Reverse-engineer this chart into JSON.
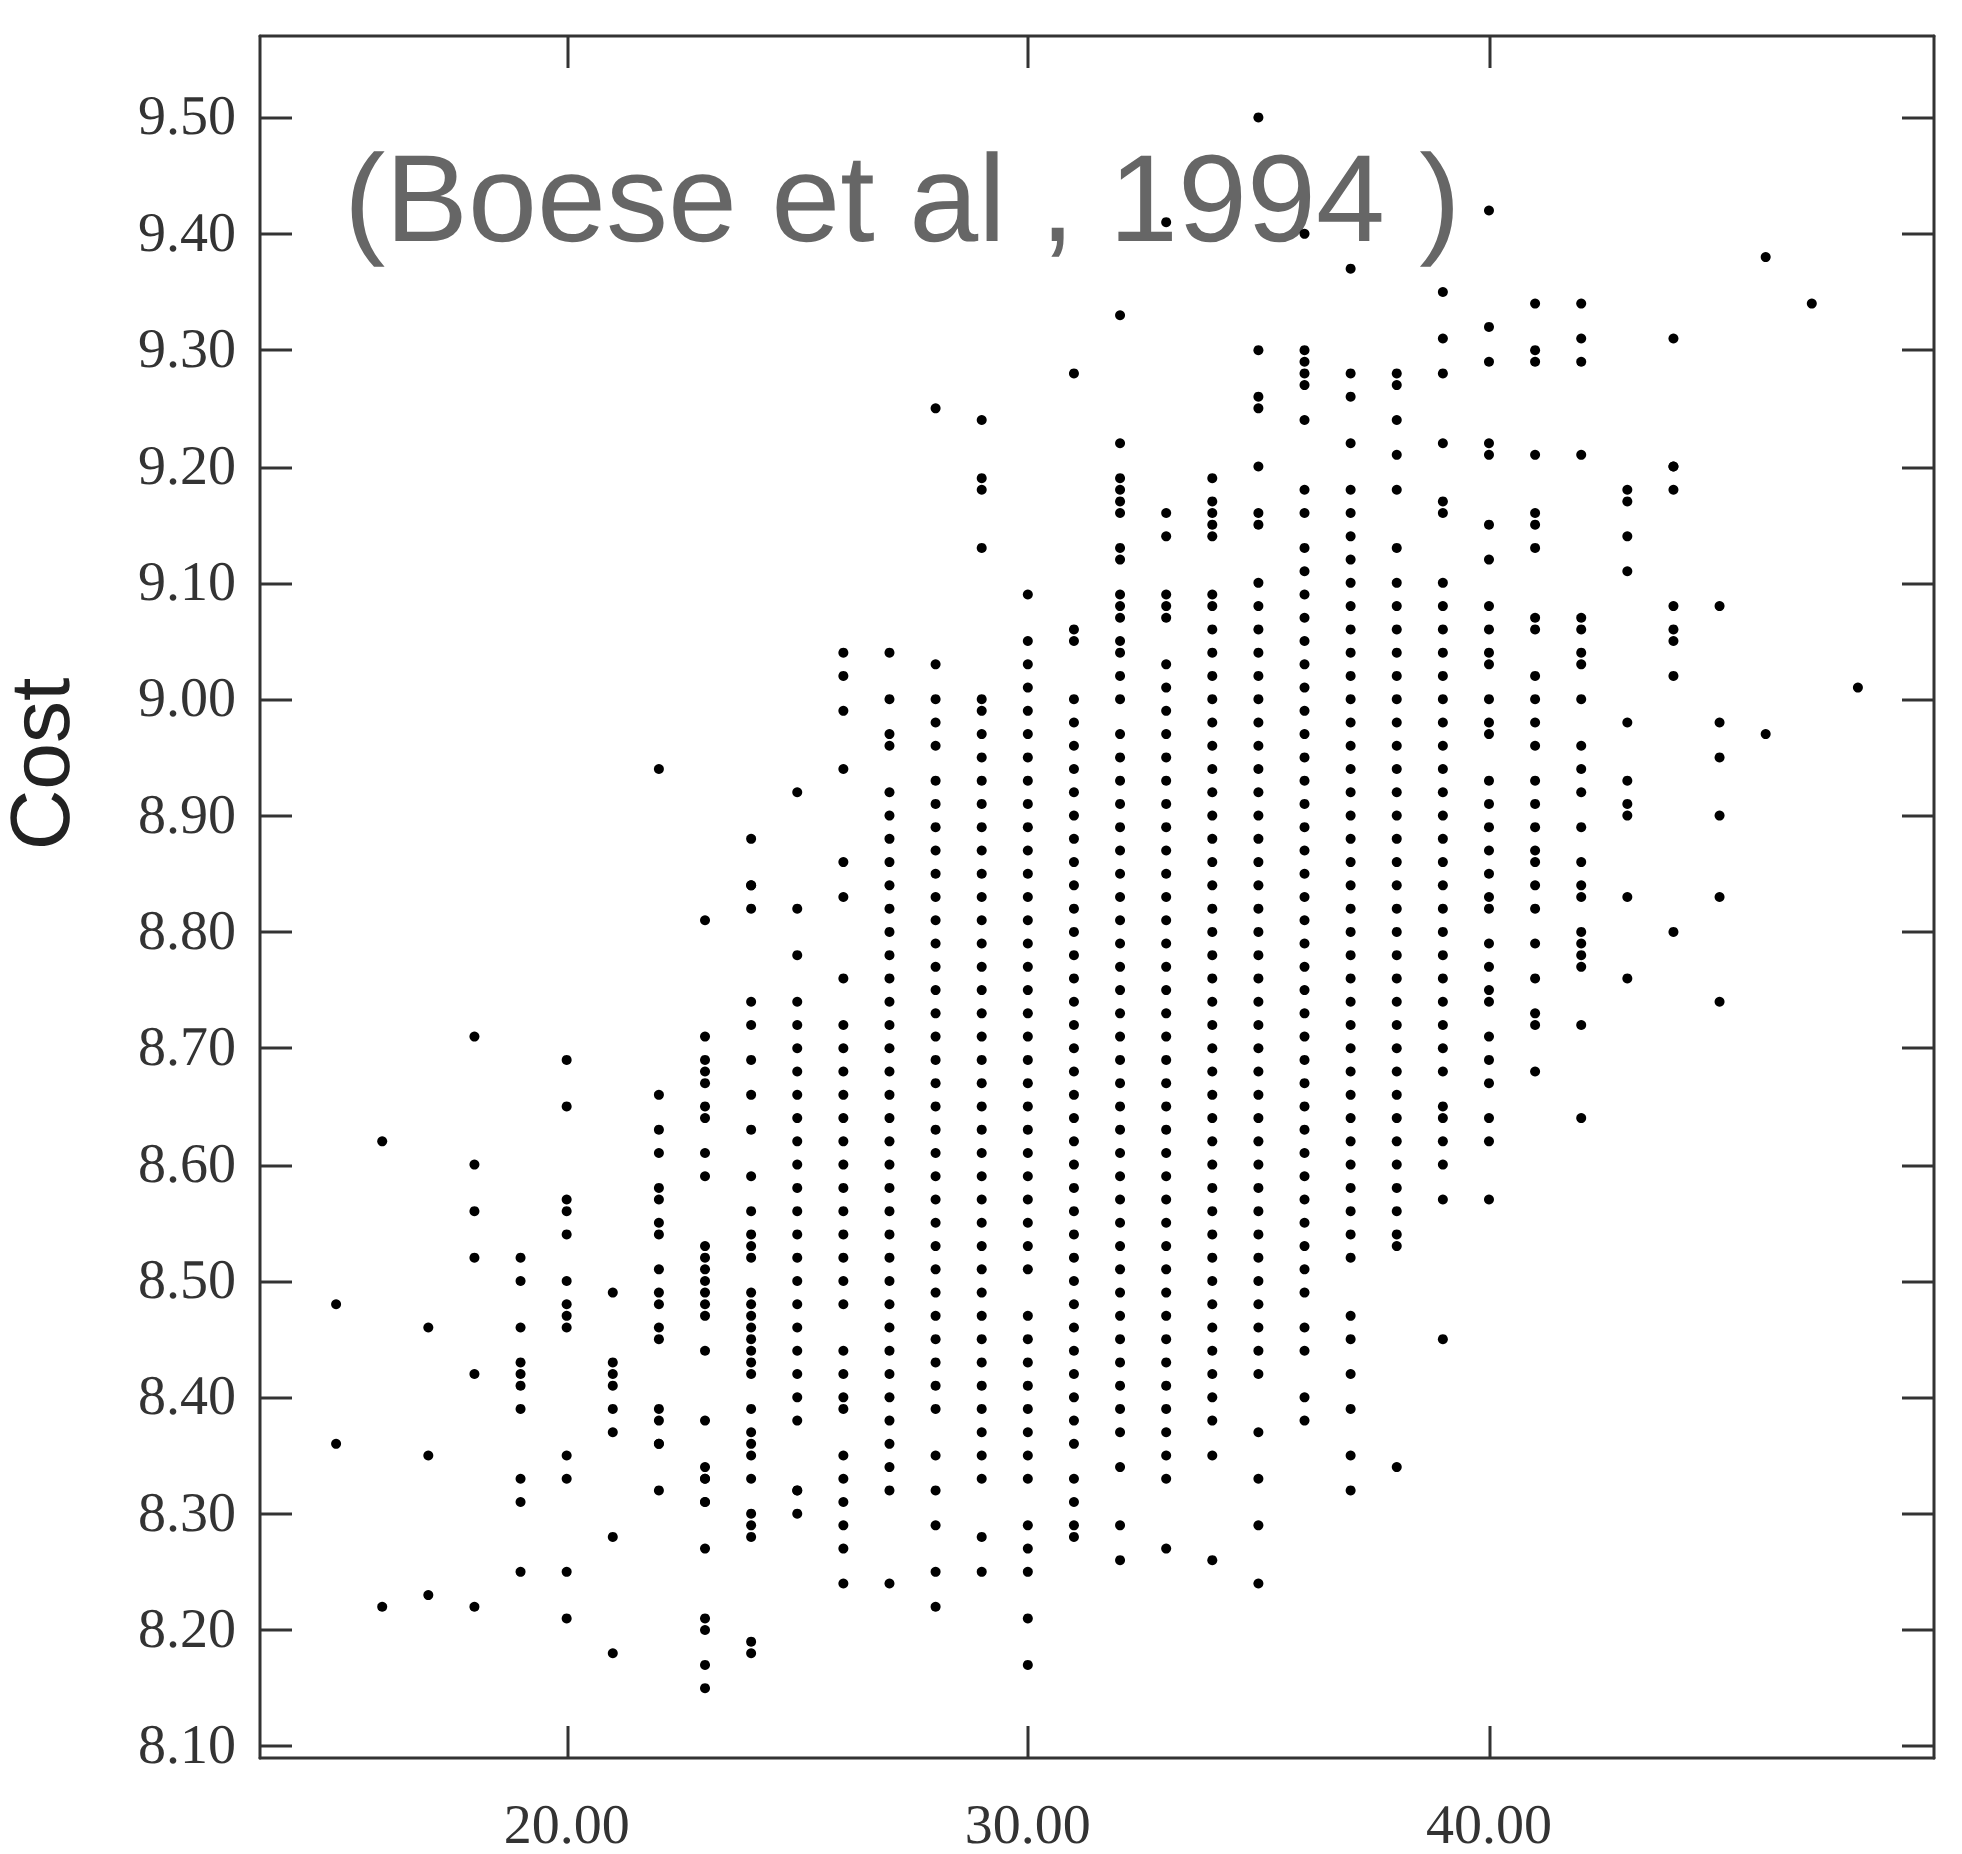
{
  "chart_data": {
    "type": "scatter",
    "ylabel": "Cost",
    "annotations": [
      "(Boese et al , 1994 )"
    ],
    "color": "#000000",
    "marker": "circle",
    "xlim": [
      13.35,
      49.65
    ],
    "ylim": [
      8.09,
      9.57
    ],
    "xticks": [
      {
        "value": 20,
        "label": "20.00"
      },
      {
        "value": 30,
        "label": "30.00"
      },
      {
        "value": 40,
        "label": "40.00"
      }
    ],
    "yticks": [
      {
        "value": 8.1,
        "label": "8.10"
      },
      {
        "value": 8.2,
        "label": "8.20"
      },
      {
        "value": 8.3,
        "label": "8.30"
      },
      {
        "value": 8.4,
        "label": "8.40"
      },
      {
        "value": 8.5,
        "label": "8.50"
      },
      {
        "value": 8.6,
        "label": "8.60"
      },
      {
        "value": 8.7,
        "label": "8.70"
      },
      {
        "value": 8.8,
        "label": "8.80"
      },
      {
        "value": 8.9,
        "label": "8.90"
      },
      {
        "value": 9.0,
        "label": "9.00"
      },
      {
        "value": 9.1,
        "label": "9.10"
      },
      {
        "value": 9.2,
        "label": "9.20"
      },
      {
        "value": 9.3,
        "label": "9.30"
      },
      {
        "value": 9.4,
        "label": "9.40"
      },
      {
        "value": 9.5,
        "label": "9.50"
      }
    ],
    "x": [
      15,
      15,
      16,
      16,
      17,
      17,
      17,
      18,
      18,
      18,
      18,
      18,
      18,
      19,
      19,
      19,
      19,
      19,
      19,
      19,
      19,
      19,
      19,
      20,
      20,
      20,
      20,
      20,
      20,
      20,
      20,
      20,
      20,
      20,
      20,
      20,
      21,
      21,
      21,
      21,
      21,
      21,
      21,
      21,
      22,
      22,
      22,
      22,
      22,
      22,
      22,
      22,
      22,
      22,
      22,
      22,
      22,
      22,
      22,
      22,
      22,
      22,
      23,
      23,
      23,
      23,
      23,
      23,
      23,
      23,
      23,
      23,
      23,
      23,
      23,
      23,
      23,
      23,
      23,
      23,
      23,
      23,
      23,
      23,
      23,
      23,
      23,
      23,
      23,
      23,
      24,
      24,
      24,
      24,
      24,
      24,
      24,
      24,
      24,
      24,
      24,
      24,
      24,
      24,
      24,
      24,
      24,
      24,
      24,
      24,
      24,
      24,
      24,
      24,
      24,
      24,
      24,
      24,
      24,
      24,
      24,
      24,
      25,
      25,
      25,
      25,
      25,
      25,
      25,
      25,
      25,
      25,
      25,
      25,
      25,
      25,
      25,
      25,
      25,
      25,
      25,
      25,
      25,
      25,
      25,
      25,
      25,
      26,
      26,
      26,
      26,
      26,
      26,
      26,
      26,
      26,
      26,
      26,
      26,
      26,
      26,
      26,
      26,
      26,
      26,
      26,
      26,
      26,
      26,
      26,
      26,
      26,
      26,
      26,
      26,
      26,
      26,
      27,
      27,
      27,
      27,
      27,
      27,
      27,
      27,
      27,
      27,
      27,
      27,
      27,
      27,
      27,
      27,
      27,
      27,
      27,
      27,
      27,
      27,
      27,
      27,
      27,
      27,
      27,
      27,
      27,
      27,
      27,
      27,
      27,
      27,
      27,
      27,
      28,
      28,
      28,
      28,
      28,
      28,
      28,
      28,
      28,
      28,
      28,
      28,
      28,
      28,
      28,
      28,
      28,
      28,
      28,
      28,
      28,
      28,
      28,
      28,
      28,
      28,
      28,
      28,
      28,
      28,
      28,
      28,
      28,
      28,
      28,
      28,
      28,
      28,
      29,
      29,
      29,
      29,
      29,
      29,
      29,
      29,
      29,
      29,
      29,
      29,
      29,
      29,
      29,
      29,
      29,
      29,
      29,
      29,
      29,
      29,
      29,
      29,
      29,
      29,
      29,
      29,
      29,
      29,
      29,
      29,
      29,
      29,
      29,
      29,
      29,
      29,
      29,
      29,
      29,
      30,
      30,
      30,
      30,
      30,
      30,
      30,
      30,
      30,
      30,
      30,
      30,
      30,
      30,
      30,
      30,
      30,
      30,
      30,
      30,
      30,
      30,
      30,
      30,
      30,
      30,
      30,
      30,
      30,
      30,
      30,
      30,
      30,
      30,
      30,
      30,
      30,
      30,
      30,
      30,
      30,
      30,
      31,
      31,
      31,
      31,
      31,
      31,
      31,
      31,
      31,
      31,
      31,
      31,
      31,
      31,
      31,
      31,
      31,
      31,
      31,
      31,
      31,
      31,
      31,
      31,
      31,
      31,
      31,
      31,
      31,
      31,
      31,
      31,
      31,
      31,
      31,
      31,
      31,
      31,
      31,
      31,
      32,
      32,
      32,
      32,
      32,
      32,
      32,
      32,
      32,
      32,
      32,
      32,
      32,
      32,
      32,
      32,
      32,
      32,
      32,
      32,
      32,
      32,
      32,
      32,
      32,
      32,
      32,
      32,
      32,
      32,
      32,
      32,
      32,
      32,
      32,
      32,
      32,
      32,
      32,
      32,
      32,
      32,
      32,
      32,
      32,
      32,
      32,
      32,
      32,
      33,
      33,
      33,
      33,
      33,
      33,
      33,
      33,
      33,
      33,
      33,
      33,
      33,
      33,
      33,
      33,
      33,
      33,
      33,
      33,
      33,
      33,
      33,
      33,
      33,
      33,
      33,
      33,
      33,
      33,
      33,
      33,
      33,
      33,
      33,
      33,
      33,
      33,
      33,
      33,
      33,
      33,
      33,
      34,
      34,
      34,
      34,
      34,
      34,
      34,
      34,
      34,
      34,
      34,
      34,
      34,
      34,
      34,
      34,
      34,
      34,
      34,
      34,
      34,
      34,
      34,
      34,
      34,
      34,
      34,
      34,
      34,
      34,
      34,
      34,
      34,
      34,
      34,
      34,
      34,
      34,
      34,
      34,
      34,
      34,
      34,
      34,
      35,
      35,
      35,
      35,
      35,
      35,
      35,
      35,
      35,
      35,
      35,
      35,
      35,
      35,
      35,
      35,
      35,
      35,
      35,
      35,
      35,
      35,
      35,
      35,
      35,
      35,
      35,
      35,
      35,
      35,
      35,
      35,
      35,
      35,
      35,
      35,
      35,
      35,
      35,
      35,
      35,
      35,
      35,
      35,
      35,
      35,
      36,
      36,
      36,
      36,
      36,
      36,
      36,
      36,
      36,
      36,
      36,
      36,
      36,
      36,
      36,
      36,
      36,
      36,
      36,
      36,
      36,
      36,
      36,
      36,
      36,
      36,
      36,
      36,
      36,
      36,
      36,
      36,
      36,
      36,
      36,
      36,
      36,
      36,
      36,
      36,
      36,
      36,
      36,
      36,
      36,
      37,
      37,
      37,
      37,
      37,
      37,
      37,
      37,
      37,
      37,
      37,
      37,
      37,
      37,
      37,
      37,
      37,
      37,
      37,
      37,
      37,
      37,
      37,
      37,
      37,
      37,
      37,
      37,
      37,
      37,
      37,
      37,
      37,
      37,
      37,
      37,
      37,
      37,
      37,
      37,
      37,
      37,
      37,
      37,
      38,
      38,
      38,
      38,
      38,
      38,
      38,
      38,
      38,
      38,
      38,
      38,
      38,
      38,
      38,
      38,
      38,
      38,
      38,
      38,
      38,
      38,
      38,
      38,
      38,
      38,
      38,
      38,
      38,
      38,
      38,
      38,
      38,
      38,
      38,
      38,
      38,
      39,
      39,
      39,
      39,
      39,
      39,
      39,
      39,
      39,
      39,
      39,
      39,
      39,
      39,
      39,
      39,
      39,
      39,
      39,
      39,
      39,
      39,
      39,
      39,
      39,
      39,
      39,
      39,
      39,
      39,
      39,
      39,
      39,
      39,
      40,
      40,
      40,
      40,
      40,
      40,
      40,
      40,
      40,
      40,
      40,
      40,
      40,
      40,
      40,
      40,
      40,
      40,
      40,
      40,
      40,
      40,
      40,
      40,
      40,
      40,
      40,
      40,
      40,
      40,
      40,
      41,
      41,
      41,
      41,
      41,
      41,
      41,
      41,
      41,
      41,
      41,
      41,
      41,
      41,
      41,
      41,
      41,
      41,
      41,
      41,
      41,
      41,
      41,
      41,
      41,
      42,
      42,
      42,
      42,
      42,
      42,
      42,
      42,
      42,
      42,
      42,
      42,
      42,
      42,
      42,
      42,
      42,
      42,
      42,
      42,
      42,
      42,
      43,
      43,
      43,
      43,
      43,
      43,
      43,
      43,
      43,
      43,
      44,
      44,
      44,
      44,
      44,
      44,
      44,
      44,
      44,
      45,
      45,
      45,
      45,
      45,
      45,
      46,
      46,
      47,
      48
    ],
    "values": [
      8.48,
      8.36,
      8.62,
      8.22,
      8.46,
      8.35,
      8.23,
      8.71,
      8.6,
      8.56,
      8.52,
      8.42,
      8.22,
      8.52,
      8.5,
      8.46,
      8.43,
      8.42,
      8.41,
      8.39,
      8.33,
      8.31,
      8.25,
      8.69,
      8.65,
      8.57,
      8.56,
      8.54,
      8.5,
      8.48,
      8.47,
      8.46,
      8.35,
      8.33,
      8.25,
      8.21,
      8.49,
      8.43,
      8.42,
      8.41,
      8.39,
      8.37,
      8.28,
      8.18,
      8.94,
      8.66,
      8.63,
      8.61,
      8.58,
      8.57,
      8.55,
      8.54,
      8.51,
      8.49,
      8.48,
      8.46,
      8.45,
      8.39,
      8.38,
      8.36,
      8.36,
      8.32,
      8.81,
      8.71,
      8.69,
      8.68,
      8.67,
      8.65,
      8.64,
      8.61,
      8.59,
      8.53,
      8.52,
      8.51,
      8.5,
      8.49,
      8.48,
      8.47,
      8.44,
      8.38,
      8.34,
      8.33,
      8.33,
      8.31,
      8.31,
      8.27,
      8.21,
      8.2,
      8.17,
      8.15,
      8.88,
      8.84,
      8.84,
      8.82,
      8.74,
      8.72,
      8.69,
      8.66,
      8.63,
      8.59,
      8.56,
      8.54,
      8.53,
      8.52,
      8.49,
      8.48,
      8.47,
      8.46,
      8.45,
      8.44,
      8.43,
      8.42,
      8.39,
      8.37,
      8.36,
      8.35,
      8.33,
      8.3,
      8.29,
      8.28,
      8.19,
      8.18,
      8.92,
      8.82,
      8.78,
      8.74,
      8.72,
      8.7,
      8.68,
      8.66,
      8.64,
      8.62,
      8.6,
      8.58,
      8.56,
      8.54,
      8.52,
      8.5,
      8.48,
      8.46,
      8.44,
      8.42,
      8.4,
      8.38,
      8.32,
      8.32,
      8.3,
      9.04,
      9.02,
      8.99,
      8.94,
      8.86,
      8.83,
      8.76,
      8.72,
      8.7,
      8.68,
      8.66,
      8.64,
      8.62,
      8.6,
      8.58,
      8.56,
      8.54,
      8.52,
      8.5,
      8.48,
      8.44,
      8.42,
      8.4,
      8.39,
      8.35,
      8.33,
      8.31,
      8.29,
      8.27,
      8.24,
      9.04,
      9.0,
      8.97,
      8.96,
      8.92,
      8.9,
      8.88,
      8.86,
      8.84,
      8.82,
      8.8,
      8.78,
      8.76,
      8.74,
      8.72,
      8.7,
      8.68,
      8.66,
      8.64,
      8.62,
      8.6,
      8.58,
      8.56,
      8.54,
      8.52,
      8.5,
      8.48,
      8.46,
      8.44,
      8.42,
      8.4,
      8.38,
      8.36,
      8.34,
      8.32,
      8.24,
      9.25,
      9.03,
      9.0,
      8.98,
      8.96,
      8.93,
      8.91,
      8.89,
      8.87,
      8.85,
      8.83,
      8.81,
      8.79,
      8.77,
      8.75,
      8.73,
      8.71,
      8.69,
      8.67,
      8.65,
      8.63,
      8.61,
      8.59,
      8.57,
      8.55,
      8.53,
      8.51,
      8.49,
      8.47,
      8.45,
      8.43,
      8.41,
      8.39,
      8.35,
      8.32,
      8.29,
      8.25,
      8.22,
      9.24,
      9.19,
      9.18,
      9.13,
      9.0,
      8.99,
      8.97,
      8.95,
      8.93,
      8.91,
      8.89,
      8.87,
      8.85,
      8.83,
      8.81,
      8.79,
      8.77,
      8.75,
      8.73,
      8.71,
      8.69,
      8.67,
      8.65,
      8.63,
      8.61,
      8.59,
      8.57,
      8.55,
      8.53,
      8.51,
      8.49,
      8.47,
      8.45,
      8.43,
      8.41,
      8.39,
      8.37,
      8.35,
      8.33,
      8.28,
      8.25,
      9.09,
      9.05,
      9.03,
      9.01,
      8.99,
      8.97,
      8.95,
      8.93,
      8.91,
      8.89,
      8.87,
      8.85,
      8.83,
      8.81,
      8.79,
      8.77,
      8.75,
      8.73,
      8.71,
      8.69,
      8.67,
      8.65,
      8.63,
      8.61,
      8.59,
      8.57,
      8.55,
      8.53,
      8.51,
      8.47,
      8.45,
      8.43,
      8.41,
      8.39,
      8.37,
      8.35,
      8.33,
      8.29,
      8.27,
      8.25,
      8.21,
      8.17,
      9.28,
      9.06,
      9.05,
      9.0,
      8.98,
      8.96,
      8.94,
      8.92,
      8.9,
      8.88,
      8.86,
      8.84,
      8.82,
      8.8,
      8.78,
      8.76,
      8.74,
      8.72,
      8.7,
      8.68,
      8.66,
      8.64,
      8.62,
      8.6,
      8.58,
      8.56,
      8.54,
      8.52,
      8.5,
      8.48,
      8.46,
      8.44,
      8.42,
      8.4,
      8.38,
      8.36,
      8.33,
      8.31,
      8.29,
      8.28,
      9.33,
      9.22,
      9.19,
      9.18,
      9.17,
      9.16,
      9.13,
      9.12,
      9.09,
      9.08,
      9.07,
      9.05,
      9.04,
      9.02,
      9.0,
      8.97,
      8.95,
      8.93,
      8.91,
      8.89,
      8.87,
      8.85,
      8.83,
      8.81,
      8.79,
      8.77,
      8.75,
      8.73,
      8.71,
      8.69,
      8.67,
      8.65,
      8.63,
      8.61,
      8.59,
      8.57,
      8.55,
      8.53,
      8.51,
      8.49,
      8.47,
      8.45,
      8.43,
      8.41,
      8.39,
      8.37,
      8.34,
      8.29,
      8.26,
      9.41,
      9.16,
      9.14,
      9.09,
      9.08,
      9.07,
      9.03,
      9.01,
      8.99,
      8.97,
      8.95,
      8.93,
      8.91,
      8.89,
      8.87,
      8.85,
      8.83,
      8.81,
      8.79,
      8.77,
      8.75,
      8.73,
      8.71,
      8.69,
      8.67,
      8.65,
      8.63,
      8.61,
      8.59,
      8.57,
      8.55,
      8.53,
      8.51,
      8.49,
      8.47,
      8.45,
      8.43,
      8.41,
      8.39,
      8.37,
      8.35,
      8.33,
      8.27,
      9.19,
      9.17,
      9.16,
      9.15,
      9.14,
      9.09,
      9.08,
      9.06,
      9.04,
      9.02,
      9.0,
      8.98,
      8.96,
      8.94,
      8.92,
      8.9,
      8.88,
      8.86,
      8.84,
      8.82,
      8.8,
      8.78,
      8.76,
      8.74,
      8.72,
      8.7,
      8.68,
      8.66,
      8.64,
      8.62,
      8.6,
      8.58,
      8.56,
      8.54,
      8.52,
      8.5,
      8.48,
      8.46,
      8.44,
      8.42,
      8.4,
      8.38,
      8.35,
      8.26,
      9.5,
      9.3,
      9.26,
      9.25,
      9.2,
      9.16,
      9.15,
      9.1,
      9.08,
      9.06,
      9.04,
      9.02,
      9.0,
      8.98,
      8.96,
      8.94,
      8.92,
      8.9,
      8.88,
      8.86,
      8.84,
      8.82,
      8.8,
      8.78,
      8.76,
      8.74,
      8.72,
      8.7,
      8.68,
      8.66,
      8.64,
      8.62,
      8.6,
      8.58,
      8.56,
      8.54,
      8.52,
      8.5,
      8.48,
      8.46,
      8.44,
      8.42,
      8.37,
      8.33,
      8.29,
      8.24,
      9.4,
      9.3,
      9.29,
      9.28,
      9.27,
      9.24,
      9.18,
      9.16,
      9.13,
      9.11,
      9.09,
      9.07,
      9.05,
      9.03,
      9.01,
      8.99,
      8.97,
      8.95,
      8.93,
      8.91,
      8.89,
      8.87,
      8.85,
      8.83,
      8.81,
      8.79,
      8.77,
      8.75,
      8.73,
      8.71,
      8.69,
      8.67,
      8.65,
      8.63,
      8.61,
      8.59,
      8.57,
      8.55,
      8.53,
      8.51,
      8.49,
      8.46,
      8.44,
      8.4,
      8.38,
      9.37,
      9.28,
      9.26,
      9.22,
      9.18,
      9.16,
      9.14,
      9.12,
      9.1,
      9.08,
      9.06,
      9.04,
      9.02,
      9.0,
      8.98,
      8.96,
      8.94,
      8.92,
      8.9,
      8.88,
      8.86,
      8.84,
      8.82,
      8.8,
      8.78,
      8.76,
      8.74,
      8.72,
      8.7,
      8.68,
      8.66,
      8.64,
      8.62,
      8.6,
      8.58,
      8.56,
      8.54,
      8.52,
      8.47,
      8.45,
      8.42,
      8.39,
      8.35,
      8.32,
      9.28,
      9.27,
      9.24,
      9.21,
      9.18,
      9.13,
      9.1,
      9.08,
      9.06,
      9.04,
      9.02,
      9.0,
      8.98,
      8.96,
      8.94,
      8.92,
      8.9,
      8.88,
      8.86,
      8.84,
      8.82,
      8.8,
      8.78,
      8.76,
      8.74,
      8.72,
      8.7,
      8.68,
      8.66,
      8.64,
      8.62,
      8.6,
      8.58,
      8.56,
      8.54,
      8.53,
      8.34,
      9.35,
      9.31,
      9.28,
      9.22,
      9.17,
      9.16,
      9.1,
      9.08,
      9.06,
      9.04,
      9.02,
      9.0,
      8.98,
      8.96,
      8.94,
      8.92,
      8.9,
      8.88,
      8.86,
      8.84,
      8.82,
      8.8,
      8.78,
      8.76,
      8.74,
      8.72,
      8.7,
      8.68,
      8.65,
      8.64,
      8.62,
      8.6,
      8.57,
      8.45,
      9.42,
      9.32,
      9.29,
      9.22,
      9.21,
      9.15,
      9.12,
      9.08,
      9.06,
      9.04,
      9.03,
      9.0,
      8.98,
      8.97,
      8.93,
      8.91,
      8.89,
      8.87,
      8.85,
      8.83,
      8.82,
      8.79,
      8.77,
      8.75,
      8.74,
      8.71,
      8.69,
      8.67,
      8.64,
      8.62,
      8.57,
      9.34,
      9.3,
      9.29,
      9.21,
      9.16,
      9.15,
      9.13,
      9.07,
      9.06,
      9.02,
      9.0,
      8.98,
      8.96,
      8.93,
      8.91,
      8.89,
      8.87,
      8.86,
      8.84,
      8.82,
      8.79,
      8.76,
      8.73,
      8.72,
      8.68,
      9.34,
      9.31,
      9.29,
      9.21,
      9.07,
      9.06,
      9.04,
      9.03,
      9.0,
      8.96,
      8.94,
      8.92,
      8.89,
      8.86,
      8.84,
      8.83,
      8.8,
      8.79,
      8.78,
      8.77,
      8.72,
      8.64,
      9.18,
      9.17,
      9.14,
      9.11,
      8.98,
      8.93,
      8.91,
      8.9,
      8.83,
      8.76,
      9.31,
      9.2,
      9.2,
      9.18,
      9.08,
      9.06,
      9.05,
      9.02,
      8.8,
      9.08,
      8.98,
      8.95,
      8.9,
      8.83,
      8.74,
      9.38,
      8.97,
      9.34,
      9.01
    ]
  }
}
